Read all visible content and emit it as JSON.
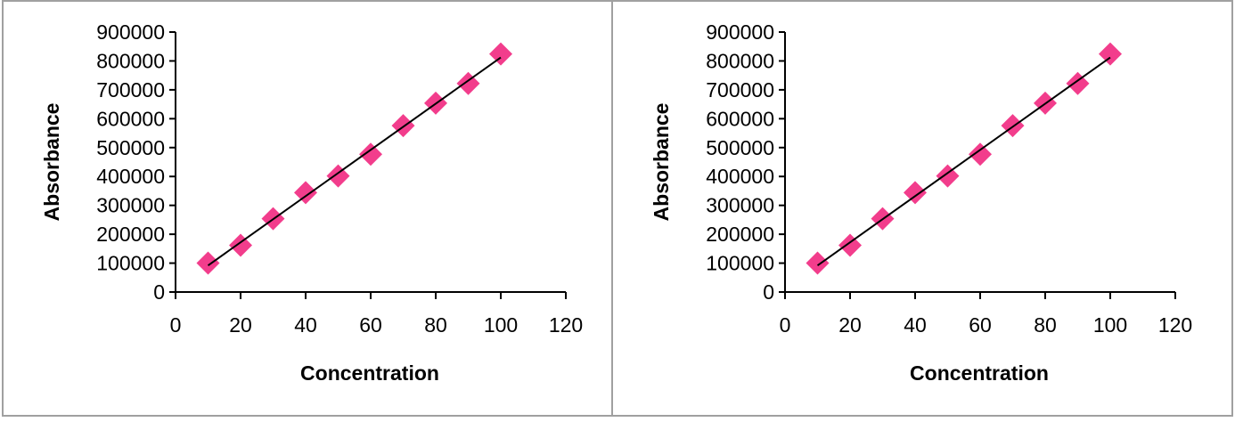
{
  "chart_data": [
    {
      "type": "scatter",
      "title": "",
      "xlabel": "Concentration",
      "ylabel": "Absorbance",
      "xlim": [
        0,
        120
      ],
      "ylim": [
        0,
        900000
      ],
      "xticks": [
        "0",
        "20",
        "40",
        "60",
        "80",
        "100",
        "120"
      ],
      "yticks": [
        "0",
        "100000",
        "200000",
        "300000",
        "400000",
        "500000",
        "600000",
        "700000",
        "800000",
        "900000"
      ],
      "x": [
        10,
        20,
        30,
        40,
        50,
        60,
        70,
        80,
        90,
        100
      ],
      "y": [
        100000,
        162000,
        254000,
        344000,
        402000,
        477000,
        576000,
        654000,
        722000,
        824000
      ],
      "trendline": {
        "x": [
          10,
          100
        ],
        "y": [
          92000,
          812000
        ]
      },
      "marker_color": "#f23d8c",
      "line_color": "#000000",
      "grid": false,
      "legend": "none"
    },
    {
      "type": "scatter",
      "title": "",
      "xlabel": "Concentration",
      "ylabel": "Absorbance",
      "xlim": [
        0,
        120
      ],
      "ylim": [
        0,
        900000
      ],
      "xticks": [
        "0",
        "20",
        "40",
        "60",
        "80",
        "100",
        "120"
      ],
      "yticks": [
        "0",
        "100000",
        "200000",
        "300000",
        "400000",
        "500000",
        "600000",
        "700000",
        "800000",
        "900000"
      ],
      "x": [
        10,
        20,
        30,
        40,
        50,
        60,
        70,
        80,
        90,
        100
      ],
      "y": [
        100000,
        162000,
        254000,
        344000,
        402000,
        477000,
        576000,
        654000,
        722000,
        824000
      ],
      "trendline": {
        "x": [
          10,
          100
        ],
        "y": [
          92000,
          812000
        ]
      },
      "marker_color": "#f23d8c",
      "line_color": "#000000",
      "grid": false,
      "legend": "none"
    }
  ]
}
